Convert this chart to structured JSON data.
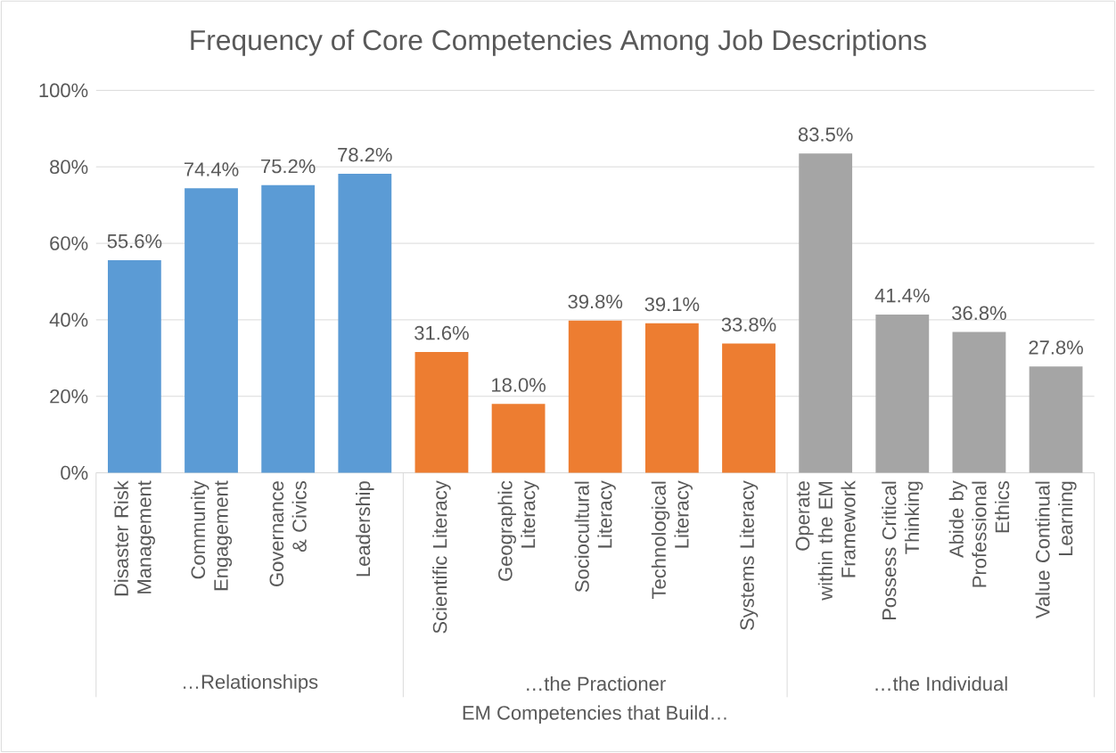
{
  "chart_data": {
    "type": "bar",
    "title": "Frequency of Core Competencies Among Job Descriptions",
    "xlabel": "EM Competencies that Build…",
    "categories": [
      "Disaster Risk Management",
      "Community Engagement",
      "Governance & Civics",
      "Leadership",
      "Scientific Literacy",
      "Geographic Literacy",
      "Sociocultural Literacy",
      "Technological Literacy",
      "Systems Literacy",
      "Operate within the EM Framework",
      "Possess Critical Thinking",
      "Abide by Professional Ethics",
      "Value Continual Learning"
    ],
    "values": [
      55.6,
      74.4,
      75.2,
      78.2,
      31.6,
      18.0,
      39.8,
      39.1,
      33.8,
      83.5,
      41.4,
      36.8,
      27.8
    ],
    "value_labels": [
      "55.6%",
      "74.4%",
      "75.2%",
      "78.2%",
      "31.6%",
      "18.0%",
      "39.8%",
      "39.1%",
      "33.8%",
      "83.5%",
      "41.4%",
      "36.8%",
      "27.8%"
    ],
    "colors": [
      "#5b9bd5",
      "#5b9bd5",
      "#5b9bd5",
      "#5b9bd5",
      "#ed7d31",
      "#ed7d31",
      "#ed7d31",
      "#ed7d31",
      "#ed7d31",
      "#a5a5a5",
      "#a5a5a5",
      "#a5a5a5",
      "#a5a5a5"
    ],
    "annotations": [
      "…Relationships",
      "…the Practioner",
      "…the Individual"
    ],
    "ylim": [
      0,
      100
    ],
    "yticks": [
      {
        "value": 0,
        "label": "0%"
      },
      {
        "value": 20,
        "label": "20%"
      },
      {
        "value": 40,
        "label": "40%"
      },
      {
        "value": 60,
        "label": "60%"
      },
      {
        "value": 80,
        "label": "80%"
      },
      {
        "value": 100,
        "label": "100%"
      }
    ],
    "grid": "y"
  }
}
